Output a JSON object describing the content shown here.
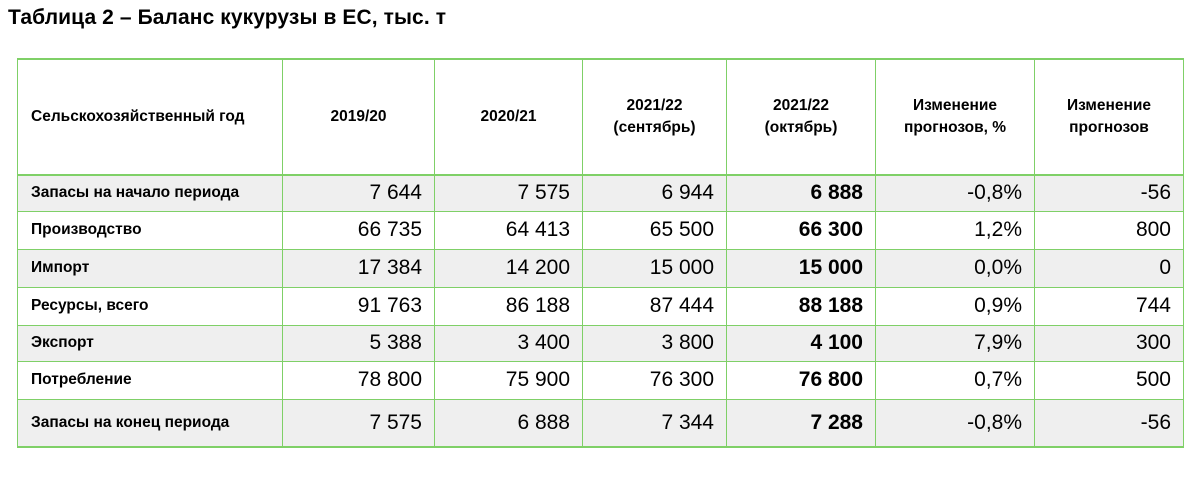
{
  "title": "Таблица 2 – Баланс кукурузы в ЕС, тыс. т",
  "header": {
    "rowhead": "Сельскохозяйственный год",
    "cols": [
      {
        "line1": "2019/20",
        "line2": ""
      },
      {
        "line1": "2020/21",
        "line2": ""
      },
      {
        "line1": "2021/22",
        "line2": "(сентябрь)"
      },
      {
        "line1": "2021/22",
        "line2": "(октябрь)"
      },
      {
        "line1": "Изменение",
        "line2": "прогнозов, %"
      },
      {
        "line1": "Изменение",
        "line2": "прогнозов"
      }
    ]
  },
  "rows": [
    {
      "label": "Запасы на начало периода",
      "values": [
        "7 644",
        "7 575",
        "6 944",
        "6 888",
        "-0,8%",
        "-56"
      ]
    },
    {
      "label": "Производство",
      "values": [
        "66 735",
        "64 413",
        "65 500",
        "66 300",
        "1,2%",
        "800"
      ]
    },
    {
      "label": "Импорт",
      "values": [
        "17 384",
        "14 200",
        "15 000",
        "15 000",
        "0,0%",
        "0"
      ]
    },
    {
      "label": "Ресурсы, всего",
      "values": [
        "91 763",
        "86 188",
        "87 444",
        "88 188",
        "0,9%",
        "744"
      ]
    },
    {
      "label": "Экспорт",
      "values": [
        "5 388",
        "3 400",
        "3 800",
        "4 100",
        "7,9%",
        "300"
      ]
    },
    {
      "label": "Потребление",
      "values": [
        "78 800",
        "75 900",
        "76 300",
        "76 800",
        "0,7%",
        "500"
      ]
    },
    {
      "label": "Запасы на конец периода",
      "values": [
        "7 575",
        "6 888",
        "7 344",
        "7 288",
        "-0,8%",
        "-56"
      ]
    }
  ],
  "colors": {
    "grid": "#7fd067",
    "shade": "#efefef"
  }
}
